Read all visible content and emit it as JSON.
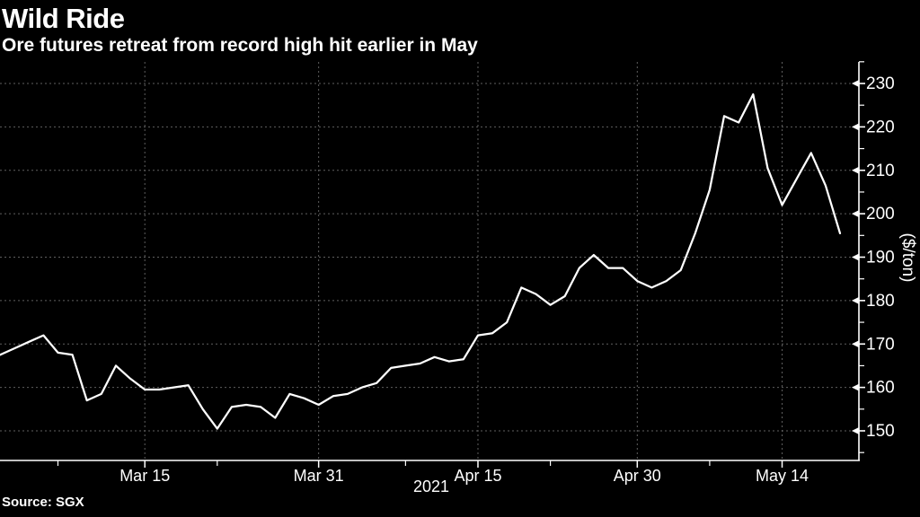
{
  "header": {
    "title": "Wild Ride",
    "subtitle": "Ore futures retreat from record high hit earlier in May"
  },
  "footer": {
    "source": "Source: SGX"
  },
  "chart_data": {
    "type": "line",
    "title": "Wild Ride",
    "subtitle": "Ore futures retreat from record high hit earlier in May",
    "source": "Source: SGX",
    "xlabel": "2021",
    "ylabel": "($/ton)",
    "unit": "USD per ton",
    "ylim": [
      143,
      234
    ],
    "yticks_major": [
      150,
      160,
      170,
      180,
      190,
      200,
      210,
      220,
      230
    ],
    "yticks_minor": [
      145,
      155,
      165,
      175,
      185,
      195,
      205,
      215,
      225,
      235
    ],
    "x_major_ticks": [
      {
        "index": 10,
        "label": "Mar 15"
      },
      {
        "index": 22,
        "label": "Mar 31"
      },
      {
        "index": 33,
        "label": "Apr 15"
      },
      {
        "index": 44,
        "label": "Apr 30"
      },
      {
        "index": 54,
        "label": "May 14"
      }
    ],
    "x_minor_tick_indices": [
      4,
      15,
      28,
      38,
      49
    ],
    "grid": true,
    "legend_position": "none",
    "line_color": "#ffffff",
    "grid_color": "#5f5f5f",
    "axis_color": "#ffffff",
    "background_color": "#000000",
    "x": [
      "Mar 1",
      "Mar 2",
      "Mar 3",
      "Mar 4",
      "Mar 5",
      "Mar 8",
      "Mar 9",
      "Mar 10",
      "Mar 11",
      "Mar 12",
      "Mar 15",
      "Mar 16",
      "Mar 17",
      "Mar 18",
      "Mar 19",
      "Mar 22",
      "Mar 23",
      "Mar 24",
      "Mar 25",
      "Mar 26",
      "Mar 29",
      "Mar 30",
      "Mar 31",
      "Apr 1",
      "Apr 2",
      "Apr 5",
      "Apr 6",
      "Apr 7",
      "Apr 8",
      "Apr 9",
      "Apr 12",
      "Apr 13",
      "Apr 14",
      "Apr 15",
      "Apr 16",
      "Apr 19",
      "Apr 20",
      "Apr 21",
      "Apr 22",
      "Apr 23",
      "Apr 26",
      "Apr 27",
      "Apr 28",
      "Apr 29",
      "Apr 30",
      "May 3",
      "May 4",
      "May 5",
      "May 6",
      "May 7",
      "May 10",
      "May 11",
      "May 12",
      "May 13",
      "May 14",
      "May 17",
      "May 18",
      "May 19",
      "May 20"
    ],
    "values": [
      167.5,
      169,
      170.5,
      172,
      168,
      167.5,
      157,
      158.5,
      165,
      162,
      159.5,
      159.5,
      160,
      160.5,
      155,
      150.5,
      155.5,
      156,
      155.5,
      153,
      158.5,
      157.5,
      156,
      158,
      158.5,
      160,
      161,
      164.5,
      165,
      165.5,
      167,
      166,
      166.5,
      172,
      172.5,
      175,
      183,
      181.5,
      179,
      181,
      187.5,
      190.5,
      187.5,
      187.5,
      184.5,
      183,
      184.5,
      187,
      195.5,
      205.5,
      222.5,
      221,
      227.5,
      210.5,
      202,
      208,
      214,
      206.5,
      195.5
    ]
  }
}
